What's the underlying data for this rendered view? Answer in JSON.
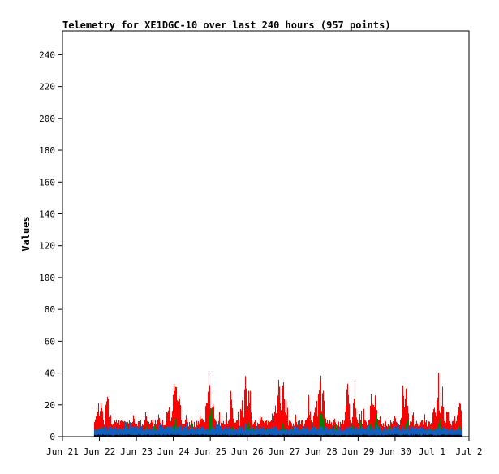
{
  "chart_data": {
    "type": "bar",
    "title": "Telemetry for XE1DGC-10 over last 240 hours (957 points)",
    "xlabel": "",
    "ylabel": "Values",
    "ylim": [
      0,
      255
    ],
    "yticks": [
      0,
      20,
      40,
      60,
      80,
      100,
      120,
      140,
      160,
      180,
      200,
      220,
      240
    ],
    "xlim": [
      0,
      11
    ],
    "x_tick_labels": [
      "Jun 21",
      "Jun 22",
      "Jun 23",
      "Jun 24",
      "Jun 25",
      "Jun 26",
      "Jun 27",
      "Jun 28",
      "Jun 29",
      "Jun 30",
      "Jul 1",
      "Jul 2"
    ],
    "x_unit": "days since Jun 21 00:00",
    "data_range_x": [
      0.85,
      10.8
    ],
    "grid": false,
    "legend": "none",
    "series": [
      {
        "color": "#ff0000",
        "base_value": 8,
        "peaks": [
          {
            "x": 0.95,
            "y": 25
          },
          {
            "x": 1.05,
            "y": 25
          },
          {
            "x": 1.2,
            "y": 32
          },
          {
            "x": 1.4,
            "y": 14
          },
          {
            "x": 1.9,
            "y": 16
          },
          {
            "x": 2.25,
            "y": 20
          },
          {
            "x": 2.6,
            "y": 15
          },
          {
            "x": 2.85,
            "y": 25
          },
          {
            "x": 3.0,
            "y": 37
          },
          {
            "x": 3.05,
            "y": 41
          },
          {
            "x": 3.15,
            "y": 29
          },
          {
            "x": 3.35,
            "y": 16
          },
          {
            "x": 3.75,
            "y": 15
          },
          {
            "x": 3.9,
            "y": 28
          },
          {
            "x": 3.95,
            "y": 43
          },
          {
            "x": 4.05,
            "y": 29
          },
          {
            "x": 4.3,
            "y": 16
          },
          {
            "x": 4.55,
            "y": 31
          },
          {
            "x": 4.85,
            "y": 28
          },
          {
            "x": 4.95,
            "y": 41
          },
          {
            "x": 5.05,
            "y": 33
          },
          {
            "x": 5.4,
            "y": 15
          },
          {
            "x": 5.75,
            "y": 22
          },
          {
            "x": 5.85,
            "y": 42
          },
          {
            "x": 5.95,
            "y": 40
          },
          {
            "x": 6.05,
            "y": 25
          },
          {
            "x": 6.3,
            "y": 18
          },
          {
            "x": 6.65,
            "y": 28
          },
          {
            "x": 6.85,
            "y": 30
          },
          {
            "x": 6.95,
            "y": 45
          },
          {
            "x": 7.05,
            "y": 32
          },
          {
            "x": 7.35,
            "y": 14
          },
          {
            "x": 7.7,
            "y": 40
          },
          {
            "x": 7.9,
            "y": 38
          },
          {
            "x": 8.05,
            "y": 18
          },
          {
            "x": 8.15,
            "y": 20
          },
          {
            "x": 8.35,
            "y": 30
          },
          {
            "x": 8.45,
            "y": 32
          },
          {
            "x": 8.6,
            "y": 16
          },
          {
            "x": 9.0,
            "y": 15
          },
          {
            "x": 9.2,
            "y": 33
          },
          {
            "x": 9.3,
            "y": 34
          },
          {
            "x": 9.45,
            "y": 17
          },
          {
            "x": 9.8,
            "y": 15
          },
          {
            "x": 10.05,
            "y": 25
          },
          {
            "x": 10.15,
            "y": 39
          },
          {
            "x": 10.25,
            "y": 35
          },
          {
            "x": 10.4,
            "y": 20
          },
          {
            "x": 10.6,
            "y": 18
          },
          {
            "x": 10.7,
            "y": 28
          },
          {
            "x": 10.75,
            "y": 26
          }
        ]
      },
      {
        "color": "#008000",
        "base_value": 4,
        "peaks": [
          {
            "x": 1.0,
            "y": 8
          },
          {
            "x": 2.0,
            "y": 7
          },
          {
            "x": 3.05,
            "y": 17
          },
          {
            "x": 4.0,
            "y": 20
          },
          {
            "x": 5.0,
            "y": 11
          },
          {
            "x": 5.95,
            "y": 13
          },
          {
            "x": 7.0,
            "y": 25
          },
          {
            "x": 8.05,
            "y": 12
          },
          {
            "x": 8.5,
            "y": 17
          },
          {
            "x": 9.3,
            "y": 15
          },
          {
            "x": 10.2,
            "y": 16
          },
          {
            "x": 10.75,
            "y": 9
          }
        ]
      },
      {
        "color": "#1060c0",
        "base_value": 5,
        "peaks": [
          {
            "x": 1.0,
            "y": 9
          },
          {
            "x": 3.0,
            "y": 7
          },
          {
            "x": 4.95,
            "y": 9
          },
          {
            "x": 7.0,
            "y": 8
          },
          {
            "x": 9.3,
            "y": 8
          },
          {
            "x": 10.2,
            "y": 8
          }
        ]
      },
      {
        "color": "#000000",
        "base_value": 1,
        "peaks": []
      }
    ]
  }
}
